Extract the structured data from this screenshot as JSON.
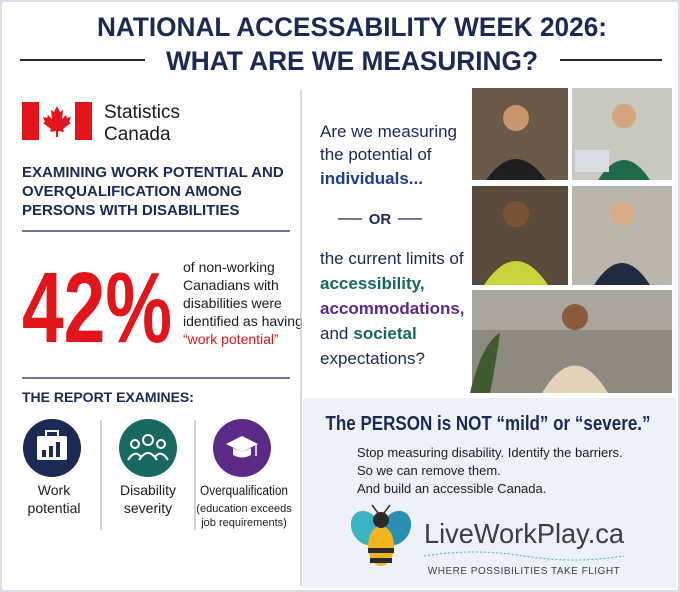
{
  "title": {
    "line1": "NATIONAL ACCESSABILITY WEEK 2026:",
    "line2": "WHAT ARE WE MEASURING?"
  },
  "logo": {
    "line1": "Statistics",
    "line2": "Canada"
  },
  "subheading": [
    "EXAMINING WORK POTENTIAL AND",
    "OVERQUALIFICATION AMONG",
    "PERSONS WITH DISABILITIES"
  ],
  "stat": {
    "value": "42%",
    "text": [
      "of non-working",
      "Canadians with",
      "disabilities were",
      "identified as having"
    ],
    "highlight": "“work potential”"
  },
  "report": {
    "heading": "THE REPORT EXAMINES:",
    "items": [
      {
        "label": [
          "Work",
          "potential"
        ]
      },
      {
        "label": [
          "Disability",
          "severity"
        ]
      },
      {
        "label": [
          "Overqualification"
        ],
        "note": [
          "(education exceeds",
          "job requirements)"
        ]
      }
    ]
  },
  "question_a": {
    "lines": [
      "Are we measuring",
      "the potential of"
    ],
    "highlight": "individuals..."
  },
  "divider_word": "OR",
  "question_b": {
    "line1": "the current limits of",
    "accessibility": "accessibility,",
    "accommodations": "accommodations,",
    "and": "and",
    "societal": "societal",
    "last": "expectations?"
  },
  "message": {
    "headline": "The PERSON is NOT “mild” or “severe.”",
    "lines": [
      "Stop measuring disability. Identify the barriers.",
      "So we can remove them.",
      "And build an accessible Canada."
    ]
  },
  "brand": {
    "name": "LiveWorkPlay.ca",
    "tagline": "WHERE POSSIBILITIES TAKE FLIGHT"
  }
}
